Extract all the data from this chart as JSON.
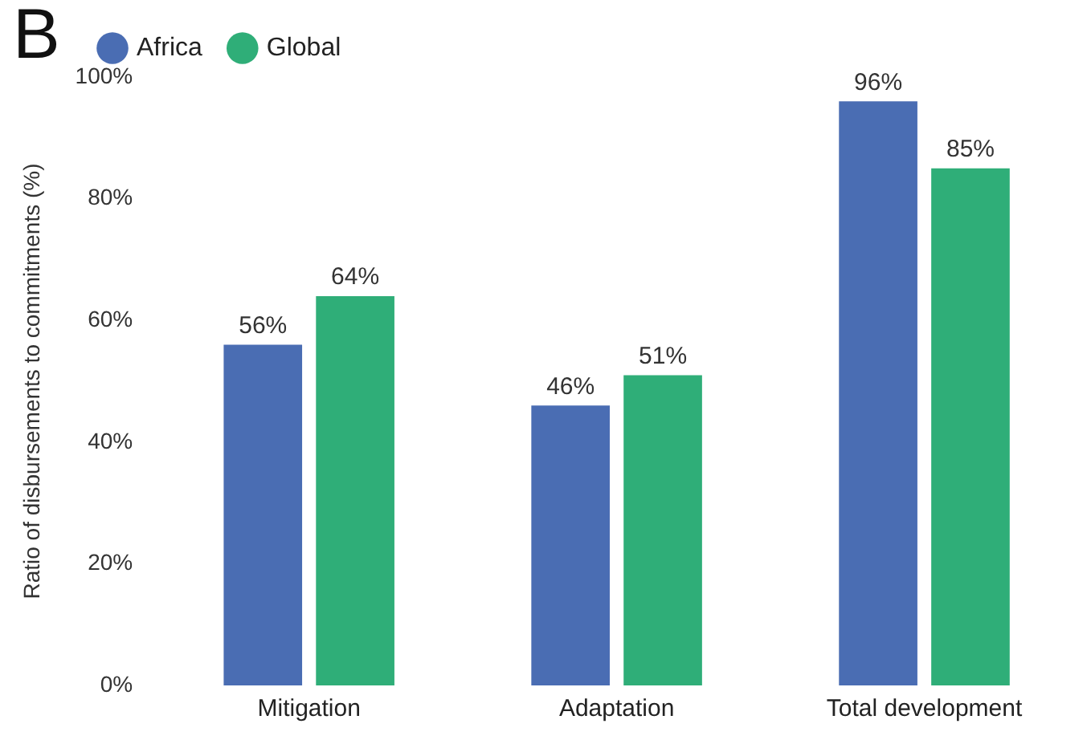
{
  "chart_data": {
    "type": "bar",
    "title": "B",
    "ylabel": "Ratio of disbursements to commitments (%)",
    "categories": [
      "Mitigation",
      "Adaptation",
      "Total development"
    ],
    "series": [
      {
        "name": "Africa",
        "color": "#4a6db3",
        "values": [
          56,
          46,
          96
        ],
        "value_labels": [
          "56%",
          "46%",
          "96%"
        ]
      },
      {
        "name": "Global",
        "color": "#2fae78",
        "values": [
          64,
          51,
          85
        ],
        "value_labels": [
          "64%",
          "51%",
          "85%"
        ]
      }
    ],
    "ylim": [
      0,
      100
    ],
    "yticks": [
      {
        "value": 0,
        "label": "0%"
      },
      {
        "value": 20,
        "label": "20%"
      },
      {
        "value": 40,
        "label": "40%"
      },
      {
        "value": 60,
        "label": "60%"
      },
      {
        "value": 80,
        "label": "80%"
      },
      {
        "value": 100,
        "label": "100%"
      }
    ],
    "grid": false,
    "legend": "top left"
  }
}
